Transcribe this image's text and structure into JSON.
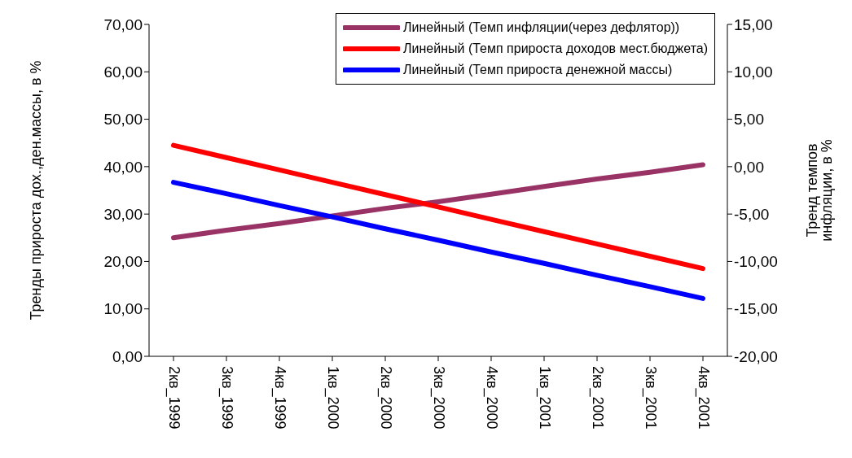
{
  "chart_data": {
    "type": "line",
    "categories": [
      "2кв_1999",
      "3кв_1999",
      "4кв_1999",
      "1кв_2000",
      "2кв_2000",
      "3кв_2000",
      "4кв_2000",
      "1кв_2001",
      "2кв_2001",
      "3кв_2001",
      "4кв_2001"
    ],
    "ylabel": "Тренды прироста дох.,ден.массы, в %",
    "y2label": "Тренд темпов инфляции, в %",
    "ylim": [
      0,
      70
    ],
    "yticks": [
      {
        "value": 0,
        "label": "0,00"
      },
      {
        "value": 10,
        "label": "10,00"
      },
      {
        "value": 20,
        "label": "20,00"
      },
      {
        "value": 30,
        "label": "30,00"
      },
      {
        "value": 40,
        "label": "40,00"
      },
      {
        "value": 50,
        "label": "50,00"
      },
      {
        "value": 60,
        "label": "60,00"
      },
      {
        "value": 70,
        "label": "70,00"
      }
    ],
    "y2lim": [
      -20,
      15
    ],
    "y2ticks": [
      {
        "value": -20,
        "label": "-20,00"
      },
      {
        "value": -15,
        "label": "-15,00"
      },
      {
        "value": -10,
        "label": "-10,00"
      },
      {
        "value": -5,
        "label": "-5,00"
      },
      {
        "value": 0,
        "label": "0,00"
      },
      {
        "value": 5,
        "label": "5,00"
      },
      {
        "value": 10,
        "label": "10,00"
      },
      {
        "value": 15,
        "label": "15,00"
      }
    ],
    "grid": false,
    "legend": "top right",
    "marker": "none",
    "line_style": "solid",
    "series": [
      {
        "name": "Линейный (Темп инфляции(через дефлятор))",
        "color": "#993366",
        "axis": "y2",
        "values": [
          -7.5,
          -6.7,
          -6.0,
          -5.2,
          -4.4,
          -3.7,
          -2.9,
          -2.1,
          -1.3,
          -0.6,
          0.2
        ]
      },
      {
        "name": "Линейный (Темп прироста доходов мест.бюджета)",
        "color": "#ff0000",
        "values": [
          44.5,
          41.9,
          39.3,
          36.7,
          34.1,
          31.5,
          28.9,
          26.3,
          23.7,
          21.1,
          18.5
        ]
      },
      {
        "name": "Линейный (Темп прироста денежной массы)",
        "color": "#0000ff",
        "values": [
          36.7,
          34.3,
          31.8,
          29.4,
          26.9,
          24.5,
          22.0,
          19.6,
          17.1,
          14.7,
          12.2
        ]
      }
    ]
  }
}
